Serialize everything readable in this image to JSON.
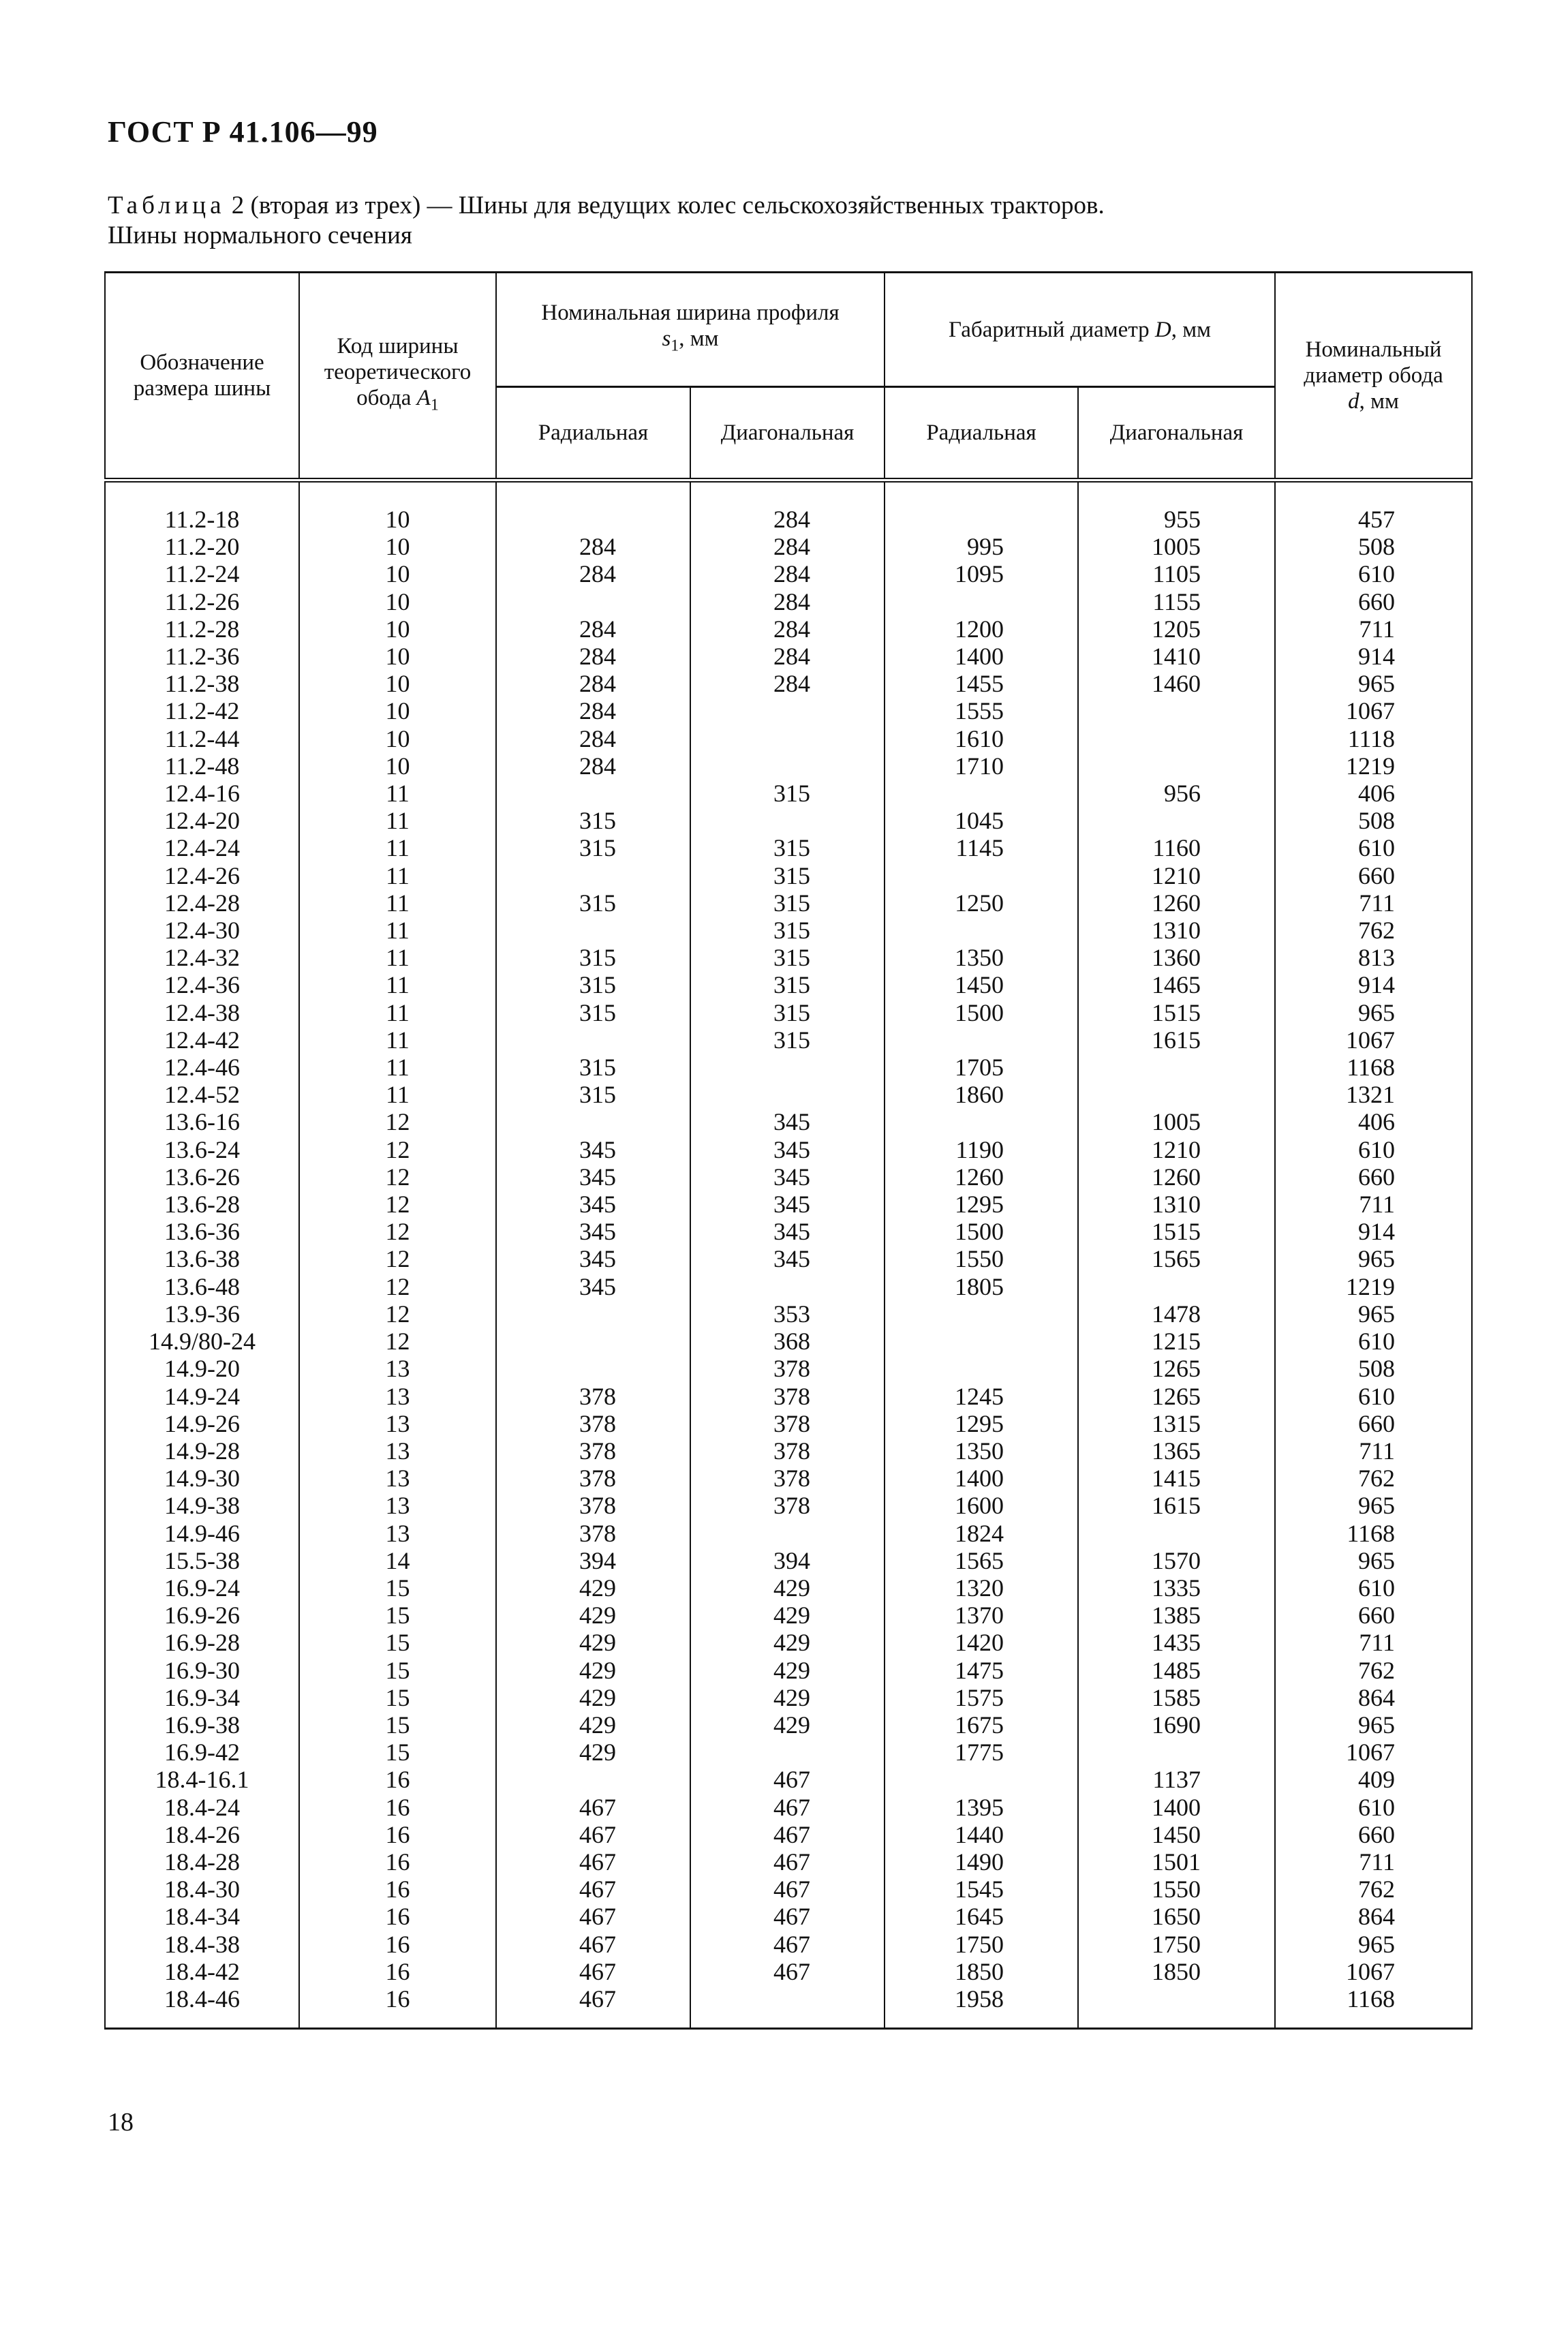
{
  "header": {
    "title": "ГОСТ Р 41.106—99"
  },
  "caption": {
    "label": "Таблица",
    "text": " 2 (вторая из трех) — Шины для ведущих колес сельскохозяйственных тракторов.",
    "line2": "Шины нормального сечения"
  },
  "table": {
    "headers": {
      "designation": "Обозначение размера шины",
      "rim_code": "Код ширины теоретического обода",
      "rim_code_symbol": "A",
      "rim_code_sub": "1",
      "width": "Номинальная ширина профиля",
      "width_symbol": "s",
      "width_sub": "1",
      "width_unit": ", мм",
      "diameter": "Габаритный диаметр",
      "diameter_symbol": "D",
      "diameter_unit": ", мм",
      "rim_diameter": "Номинальный диаметр обода",
      "rim_diameter_symbol": "d",
      "rim_diameter_unit": ", мм",
      "radial": "Радиальная",
      "diagonal": "Диагональная"
    },
    "rows": [
      [
        "11.2-18",
        "10",
        "",
        "284",
        "",
        "955",
        "457"
      ],
      [
        "11.2-20",
        "10",
        "284",
        "284",
        "995",
        "1005",
        "508"
      ],
      [
        "11.2-24",
        "10",
        "284",
        "284",
        "1095",
        "1105",
        "610"
      ],
      [
        "11.2-26",
        "10",
        "",
        "284",
        "",
        "1155",
        "660"
      ],
      [
        "11.2-28",
        "10",
        "284",
        "284",
        "1200",
        "1205",
        "711"
      ],
      [
        "11.2-36",
        "10",
        "284",
        "284",
        "1400",
        "1410",
        "914"
      ],
      [
        "11.2-38",
        "10",
        "284",
        "284",
        "1455",
        "1460",
        "965"
      ],
      [
        "11.2-42",
        "10",
        "284",
        "",
        "1555",
        "",
        "1067"
      ],
      [
        "11.2-44",
        "10",
        "284",
        "",
        "1610",
        "",
        "1118"
      ],
      [
        "11.2-48",
        "10",
        "284",
        "",
        "1710",
        "",
        "1219"
      ],
      [
        "12.4-16",
        "11",
        "",
        "315",
        "",
        "956",
        "406"
      ],
      [
        "12.4-20",
        "11",
        "315",
        "",
        "1045",
        "",
        "508"
      ],
      [
        "12.4-24",
        "11",
        "315",
        "315",
        "1145",
        "1160",
        "610"
      ],
      [
        "12.4-26",
        "11",
        "",
        "315",
        "",
        "1210",
        "660"
      ],
      [
        "12.4-28",
        "11",
        "315",
        "315",
        "1250",
        "1260",
        "711"
      ],
      [
        "12.4-30",
        "11",
        "",
        "315",
        "",
        "1310",
        "762"
      ],
      [
        "12.4-32",
        "11",
        "315",
        "315",
        "1350",
        "1360",
        "813"
      ],
      [
        "12.4-36",
        "11",
        "315",
        "315",
        "1450",
        "1465",
        "914"
      ],
      [
        "12.4-38",
        "11",
        "315",
        "315",
        "1500",
        "1515",
        "965"
      ],
      [
        "12.4-42",
        "11",
        "",
        "315",
        "",
        "1615",
        "1067"
      ],
      [
        "12.4-46",
        "11",
        "315",
        "",
        "1705",
        "",
        "1168"
      ],
      [
        "12.4-52",
        "11",
        "315",
        "",
        "1860",
        "",
        "1321"
      ],
      [
        "13.6-16",
        "12",
        "",
        "345",
        "",
        "1005",
        "406"
      ],
      [
        "13.6-24",
        "12",
        "345",
        "345",
        "1190",
        "1210",
        "610"
      ],
      [
        "13.6-26",
        "12",
        "345",
        "345",
        "1260",
        "1260",
        "660"
      ],
      [
        "13.6-28",
        "12",
        "345",
        "345",
        "1295",
        "1310",
        "711"
      ],
      [
        "13.6-36",
        "12",
        "345",
        "345",
        "1500",
        "1515",
        "914"
      ],
      [
        "13.6-38",
        "12",
        "345",
        "345",
        "1550",
        "1565",
        "965"
      ],
      [
        "13.6-48",
        "12",
        "345",
        "",
        "1805",
        "",
        "1219"
      ],
      [
        "13.9-36",
        "12",
        "",
        "353",
        "",
        "1478",
        "965"
      ],
      [
        "14.9/80-24",
        "12",
        "",
        "368",
        "",
        "1215",
        "610"
      ],
      [
        "14.9-20",
        "13",
        "",
        "378",
        "",
        "1265",
        "508"
      ],
      [
        "14.9-24",
        "13",
        "378",
        "378",
        "1245",
        "1265",
        "610"
      ],
      [
        "14.9-26",
        "13",
        "378",
        "378",
        "1295",
        "1315",
        "660"
      ],
      [
        "14.9-28",
        "13",
        "378",
        "378",
        "1350",
        "1365",
        "711"
      ],
      [
        "14.9-30",
        "13",
        "378",
        "378",
        "1400",
        "1415",
        "762"
      ],
      [
        "14.9-38",
        "13",
        "378",
        "378",
        "1600",
        "1615",
        "965"
      ],
      [
        "14.9-46",
        "13",
        "378",
        "",
        "1824",
        "",
        "1168"
      ],
      [
        "15.5-38",
        "14",
        "394",
        "394",
        "1565",
        "1570",
        "965"
      ],
      [
        "16.9-24",
        "15",
        "429",
        "429",
        "1320",
        "1335",
        "610"
      ],
      [
        "16.9-26",
        "15",
        "429",
        "429",
        "1370",
        "1385",
        "660"
      ],
      [
        "16.9-28",
        "15",
        "429",
        "429",
        "1420",
        "1435",
        "711"
      ],
      [
        "16.9-30",
        "15",
        "429",
        "429",
        "1475",
        "1485",
        "762"
      ],
      [
        "16.9-34",
        "15",
        "429",
        "429",
        "1575",
        "1585",
        "864"
      ],
      [
        "16.9-38",
        "15",
        "429",
        "429",
        "1675",
        "1690",
        "965"
      ],
      [
        "16.9-42",
        "15",
        "429",
        "",
        "1775",
        "",
        "1067"
      ],
      [
        "18.4-16.1",
        "16",
        "",
        "467",
        "",
        "1137",
        "409"
      ],
      [
        "18.4-24",
        "16",
        "467",
        "467",
        "1395",
        "1400",
        "610"
      ],
      [
        "18.4-26",
        "16",
        "467",
        "467",
        "1440",
        "1450",
        "660"
      ],
      [
        "18.4-28",
        "16",
        "467",
        "467",
        "1490",
        "1501",
        "711"
      ],
      [
        "18.4-30",
        "16",
        "467",
        "467",
        "1545",
        "1550",
        "762"
      ],
      [
        "18.4-34",
        "16",
        "467",
        "467",
        "1645",
        "1650",
        "864"
      ],
      [
        "18.4-38",
        "16",
        "467",
        "467",
        "1750",
        "1750",
        "965"
      ],
      [
        "18.4-42",
        "16",
        "467",
        "467",
        "1850",
        "1850",
        "1067"
      ],
      [
        "18.4-46",
        "16",
        "467",
        "",
        "1958",
        "",
        "1168"
      ]
    ]
  },
  "footer": {
    "page_number": "18"
  }
}
